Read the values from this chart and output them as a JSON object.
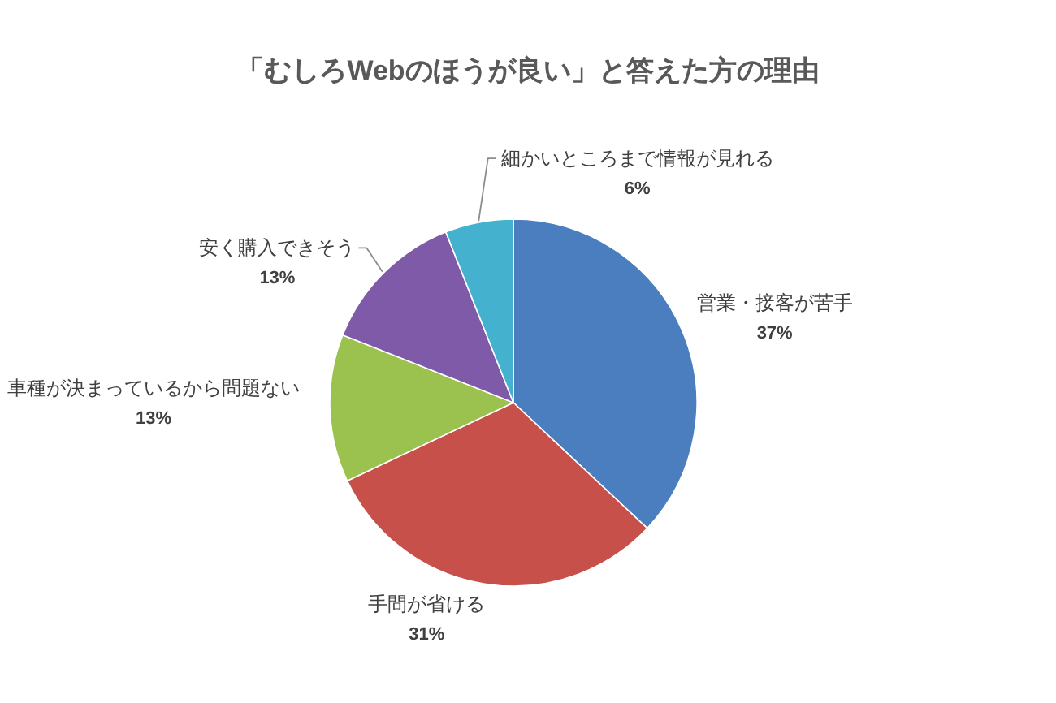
{
  "chart_data": {
    "type": "pie",
    "title": "「むしろWebのほうが良い」と答えた方の理由",
    "categories": [
      "営業・接客が苦手",
      "手間が省ける",
      "車種が決まっているから問題ない",
      "安く購入できそう",
      "細かいところまで情報が見れる"
    ],
    "values": [
      37,
      31,
      13,
      13,
      6
    ],
    "colors": [
      "#4a7ebf",
      "#c8504b",
      "#9bc24f",
      "#7f5aa8",
      "#44b2cf"
    ],
    "value_labels": [
      "37%",
      "31%",
      "13%",
      "13%",
      "6%"
    ]
  }
}
